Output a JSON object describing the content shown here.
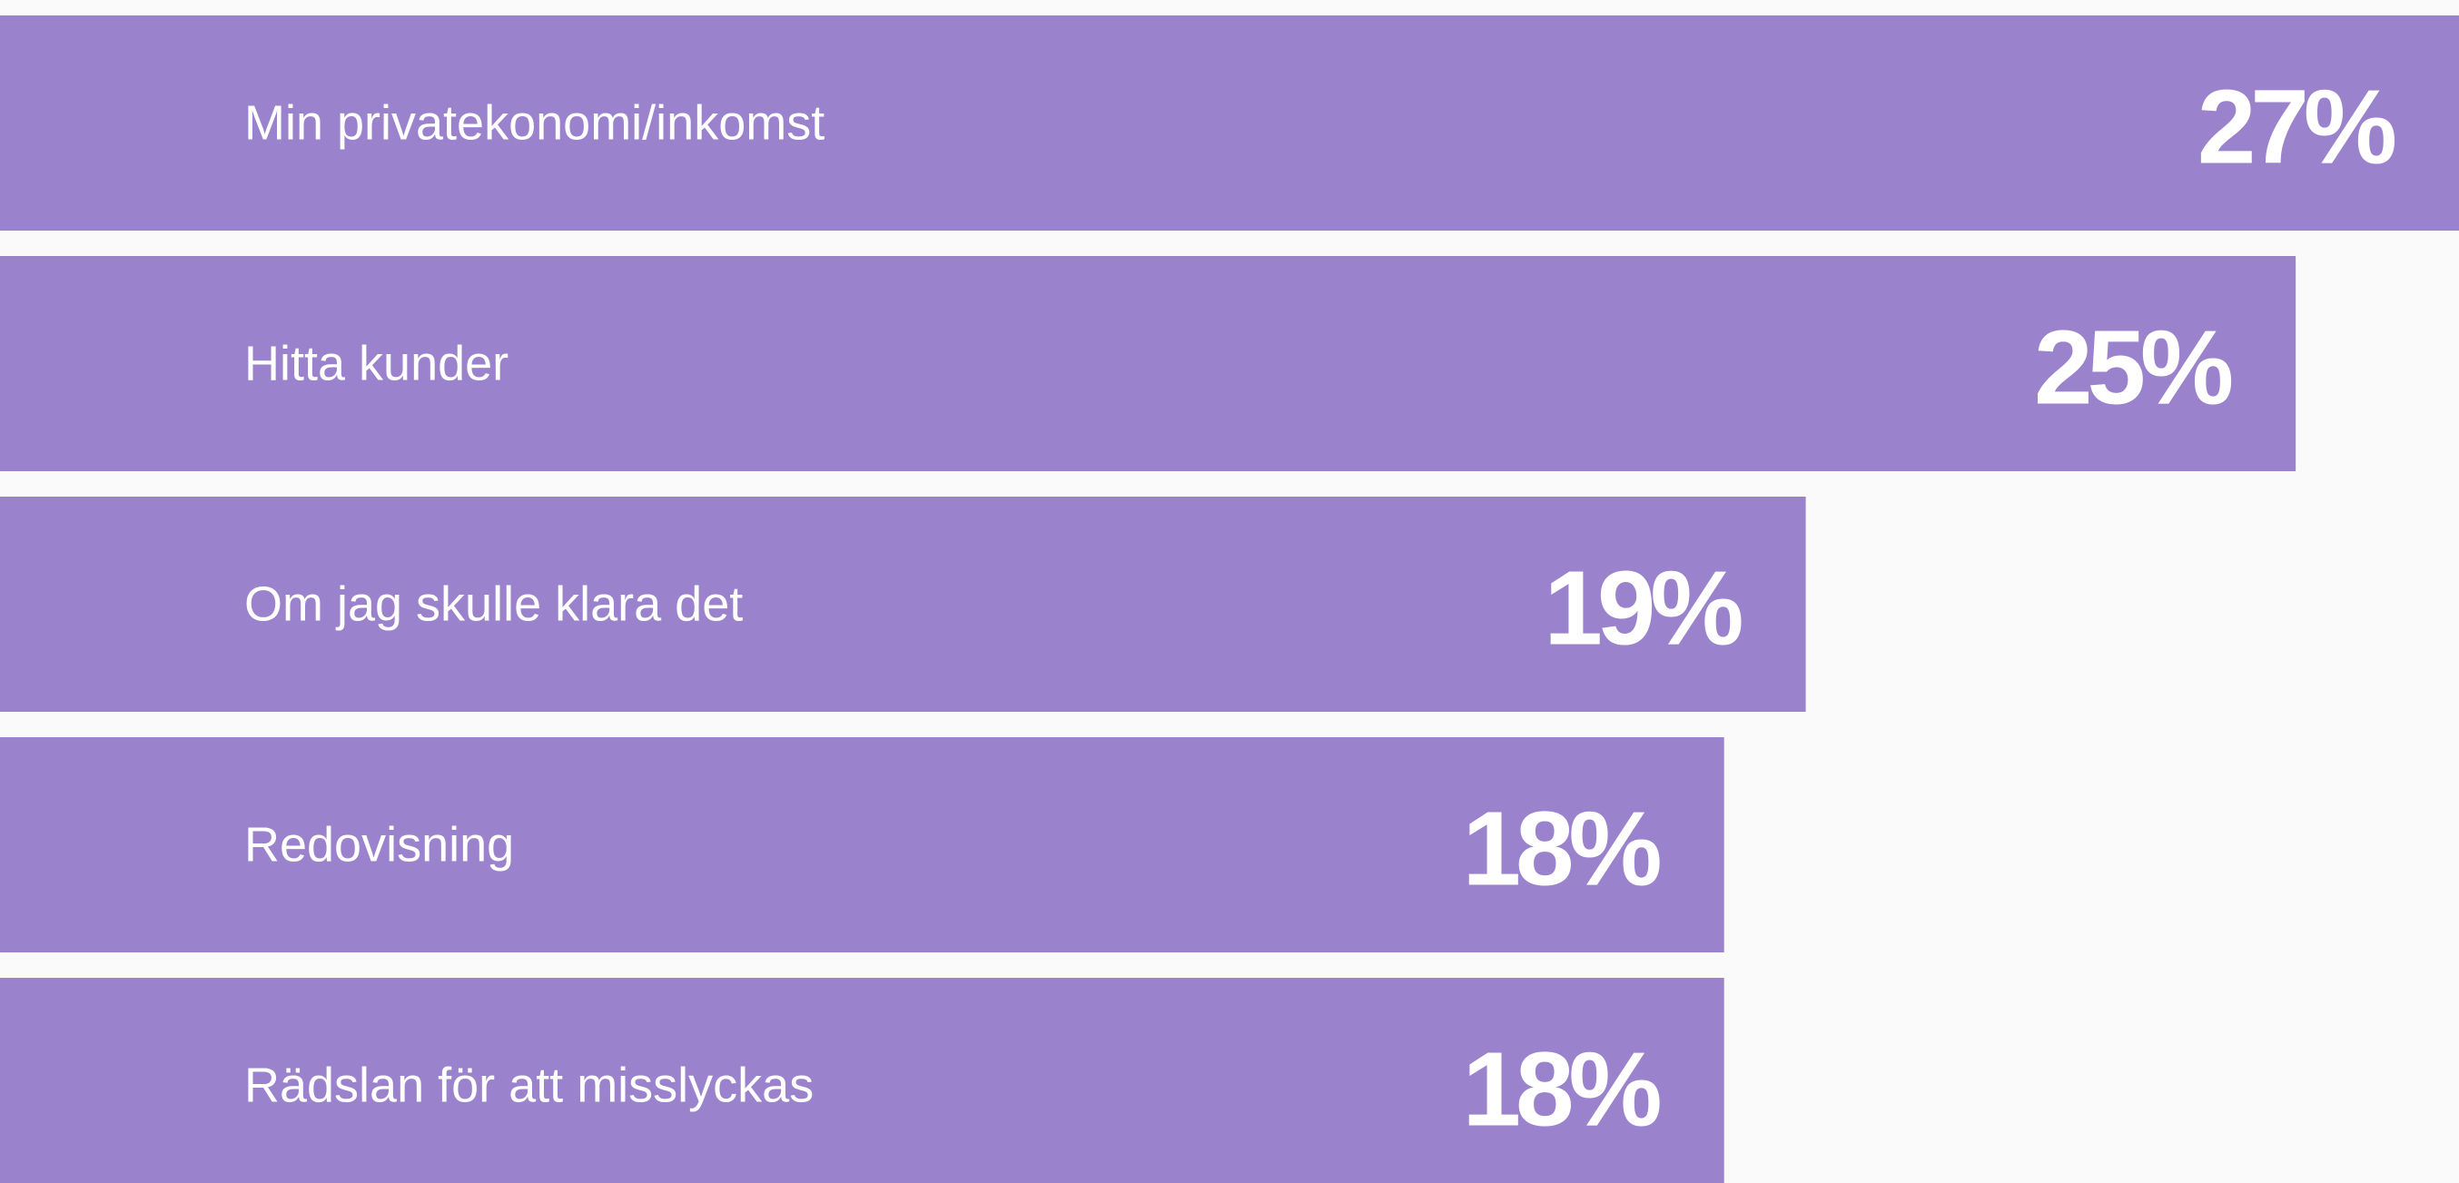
{
  "chart_data": {
    "type": "bar",
    "orientation": "horizontal",
    "categories": [
      "Min privatekonomi/inkomst",
      "Hitta kunder",
      "Om jag skulle klara det",
      "Redovisning",
      "Rädslan för att misslyckas"
    ],
    "values": [
      27,
      25,
      19,
      18,
      18
    ],
    "value_labels": [
      "27%",
      "25%",
      "19%",
      "18%",
      "18%"
    ],
    "color": "#9b82cd"
  }
}
